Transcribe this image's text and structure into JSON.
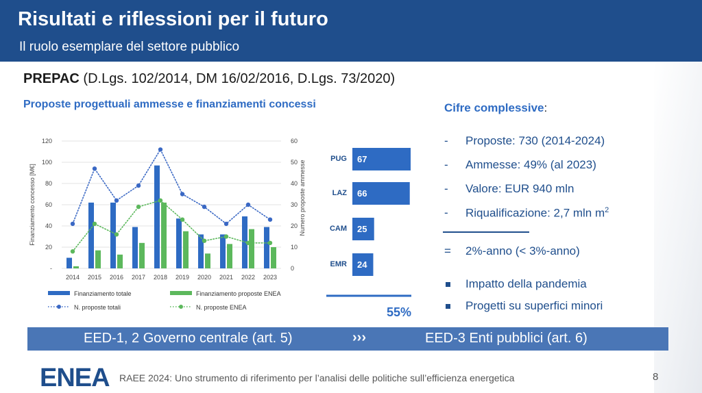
{
  "header": {
    "title": "Risultati e riflessioni per il futuro",
    "subtitle": "Il ruolo esemplare del settore pubblico"
  },
  "prepac": {
    "bold": "PREPAC",
    "rest": " (D.Lgs. 102/2014, DM 16/02/2016, D.Lgs. 73/2020)"
  },
  "chart_title": "Proposte progettuali ammesse e finanziamenti concessi",
  "chart_data": [
    {
      "type": "bar",
      "title": "Proposte progettuali ammesse e finanziamenti concessi",
      "categories": [
        "2014",
        "2015",
        "2016",
        "2017",
        "2018",
        "2019",
        "2020",
        "2021",
        "2022",
        "2023"
      ],
      "ylabel": "Finanziamento concesso [M€]",
      "y2label": "Numero proposte ammesse",
      "ylim": [
        0,
        120
      ],
      "y2lim": [
        0,
        60
      ],
      "yticks": [
        "-",
        "20",
        "40",
        "60",
        "80",
        "100",
        "120"
      ],
      "y2ticks": [
        "0",
        "10",
        "20",
        "30",
        "40",
        "50",
        "60"
      ],
      "series": [
        {
          "name": "Finanziamento totale",
          "kind": "bar",
          "axis": "left",
          "color": "#2e6bc3",
          "values": [
            10,
            62,
            62,
            39,
            97,
            47,
            32,
            32,
            49,
            39
          ]
        },
        {
          "name": "Finanziamento proposte ENEA",
          "kind": "bar",
          "axis": "left",
          "color": "#5cb85c",
          "values": [
            2,
            17,
            13,
            24,
            62,
            35,
            14,
            23,
            37,
            20
          ]
        },
        {
          "name": "N. proposte totali",
          "kind": "line-dotted",
          "axis": "right",
          "color": "#3a68c4",
          "values": [
            21,
            47,
            32,
            39,
            56,
            35,
            29,
            21,
            30,
            23
          ]
        },
        {
          "name": "N. proposte ENEA",
          "kind": "line-dotted",
          "axis": "right",
          "color": "#5cb85c",
          "values": [
            8,
            21,
            16,
            29,
            32,
            23,
            13,
            15,
            12,
            12
          ]
        }
      ]
    },
    {
      "type": "bar",
      "orientation": "horizontal",
      "categories": [
        "PUG",
        "LAZ",
        "CAM",
        "EMR"
      ],
      "values": [
        67,
        66,
        25,
        24
      ],
      "total_label": "55%"
    }
  ],
  "figures": {
    "title": "Cifre complessive",
    "colon": ":",
    "items": [
      {
        "dash": "-",
        "text": "Proposte: 730 (2014-2024)"
      },
      {
        "dash": "-",
        "text": "Ammesse: 49% (al 2023)"
      },
      {
        "dash": "-",
        "text": "Valore: EUR 940 mln"
      },
      {
        "dash": "-",
        "text": "Riqualificazione: 2,7 mln m",
        "sup": "2"
      }
    ],
    "equals_sym": "=",
    "equals_text": "2%-anno (< 3%-anno)",
    "bullets": [
      "Impatto della pandemia",
      "Progetti su superfici minori"
    ]
  },
  "banner": {
    "left": "EED-1, 2 Governo centrale (art. 5)",
    "arrows": "›››",
    "right": "EED-3 Enti pubblici (art. 6)"
  },
  "footer": {
    "logo_text": "ENEA",
    "text": "RAEE 2024: Uno strumento di riferimento per l’analisi delle politiche sull’efficienza energetica",
    "page": "8"
  },
  "colors": {
    "header_bg": "#1f4e8c",
    "accent": "#2e6bc3",
    "green": "#5cb85c",
    "banner": "#4a76b6"
  }
}
